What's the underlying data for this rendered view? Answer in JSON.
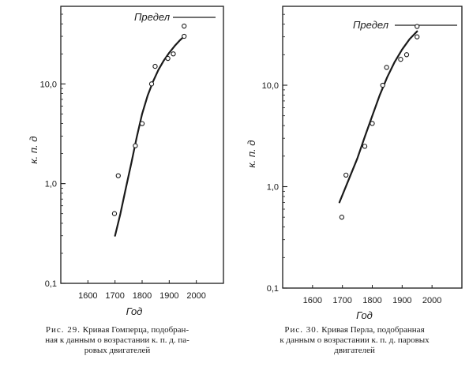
{
  "chart_data": [
    {
      "type": "scatter",
      "title": "",
      "xlabel": "Год",
      "ylabel": "к. п. д",
      "log_y": true,
      "grid": false,
      "xlim": [
        1500,
        2100
      ],
      "ylim": [
        0.1,
        60
      ],
      "x_ticks": [
        1600,
        1700,
        1800,
        1900,
        2000
      ],
      "y_ticks": [
        {
          "value": 0.1,
          "label": "0,1"
        },
        {
          "value": 1,
          "label": "1,0"
        },
        {
          "value": 10,
          "label": "10,0"
        }
      ],
      "limit": {
        "label": "Предел",
        "value": 50
      },
      "points": [
        {
          "x": 1698,
          "y": 0.5
        },
        {
          "x": 1712,
          "y": 1.2
        },
        {
          "x": 1775,
          "y": 2.4
        },
        {
          "x": 1800,
          "y": 4.0
        },
        {
          "x": 1835,
          "y": 10.0
        },
        {
          "x": 1848,
          "y": 15.0
        },
        {
          "x": 1895,
          "y": 18.0
        },
        {
          "x": 1915,
          "y": 20.0
        },
        {
          "x": 1955,
          "y": 30.0
        },
        {
          "x": 1955,
          "y": 38.0
        }
      ],
      "curve": [
        {
          "x": 1700,
          "y": 0.3
        },
        {
          "x": 1720,
          "y": 0.5
        },
        {
          "x": 1740,
          "y": 0.9
        },
        {
          "x": 1760,
          "y": 1.6
        },
        {
          "x": 1780,
          "y": 2.9
        },
        {
          "x": 1800,
          "y": 5.0
        },
        {
          "x": 1820,
          "y": 7.6
        },
        {
          "x": 1840,
          "y": 10.5
        },
        {
          "x": 1860,
          "y": 13.8
        },
        {
          "x": 1880,
          "y": 17.2
        },
        {
          "x": 1900,
          "y": 20.5
        },
        {
          "x": 1920,
          "y": 24.0
        },
        {
          "x": 1940,
          "y": 27.5
        },
        {
          "x": 1955,
          "y": 30.0
        }
      ],
      "caption": {
        "number": "Рис. 29.",
        "lines": [
          "Кривая Гомперца, подобран-",
          "ная к данным о возрастании к. п. д. па-",
          "ровых двигателей"
        ]
      }
    },
    {
      "type": "scatter",
      "title": "",
      "xlabel": "Год",
      "ylabel": "к. п. д",
      "log_y": true,
      "grid": false,
      "xlim": [
        1500,
        2100
      ],
      "ylim": [
        0.1,
        60
      ],
      "x_ticks": [
        1600,
        1700,
        1800,
        1900,
        2000
      ],
      "y_ticks": [
        {
          "value": 0.1,
          "label": "0,1"
        },
        {
          "value": 1,
          "label": "1,0"
        },
        {
          "value": 10,
          "label": "10,0"
        }
      ],
      "limit": {
        "label": "Предел",
        "value": 50
      },
      "points": [
        {
          "x": 1698,
          "y": 0.5
        },
        {
          "x": 1712,
          "y": 1.3
        },
        {
          "x": 1775,
          "y": 2.5
        },
        {
          "x": 1800,
          "y": 4.2
        },
        {
          "x": 1835,
          "y": 10.0
        },
        {
          "x": 1848,
          "y": 15.0
        },
        {
          "x": 1895,
          "y": 18.0
        },
        {
          "x": 1915,
          "y": 20.0
        },
        {
          "x": 1950,
          "y": 30.0
        },
        {
          "x": 1950,
          "y": 38.0
        }
      ],
      "curve": [
        {
          "x": 1690,
          "y": 0.7
        },
        {
          "x": 1720,
          "y": 1.15
        },
        {
          "x": 1750,
          "y": 1.9
        },
        {
          "x": 1775,
          "y": 3.1
        },
        {
          "x": 1800,
          "y": 5.0
        },
        {
          "x": 1825,
          "y": 8.0
        },
        {
          "x": 1850,
          "y": 12.0
        },
        {
          "x": 1875,
          "y": 17.0
        },
        {
          "x": 1900,
          "y": 22.5
        },
        {
          "x": 1925,
          "y": 28.5
        },
        {
          "x": 1950,
          "y": 34.0
        }
      ],
      "caption": {
        "number": "Рис. 30.",
        "lines": [
          "Кривая Перла, подобранная",
          "к данным о возрастании к. п. д. паровых",
          "двигателей"
        ]
      }
    }
  ]
}
